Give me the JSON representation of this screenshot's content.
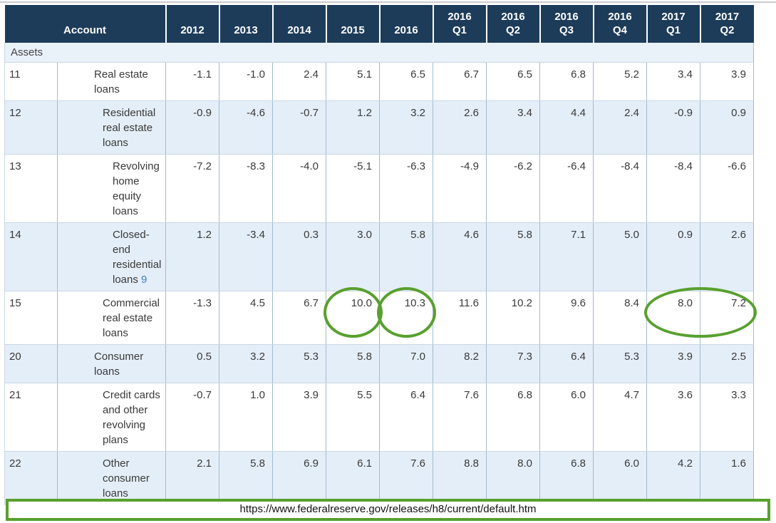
{
  "table": {
    "account_header": "Account",
    "columns": [
      "2012",
      "2013",
      "2014",
      "2015",
      "2016",
      "2016 Q1",
      "2016 Q2",
      "2016 Q3",
      "2016 Q4",
      "2017 Q1",
      "2017 Q2"
    ],
    "section_label": "Assets",
    "rows": [
      {
        "id": "11",
        "account": "Real estate loans",
        "indent": 1,
        "shaded": false,
        "values": [
          "-1.1",
          "-1.0",
          "2.4",
          "5.1",
          "6.5",
          "6.7",
          "6.5",
          "6.8",
          "5.2",
          "3.4",
          "3.9"
        ]
      },
      {
        "id": "12",
        "account": "Residential real estate loans",
        "indent": 2,
        "shaded": true,
        "values": [
          "-0.9",
          "-4.6",
          "-0.7",
          "1.2",
          "3.2",
          "2.6",
          "3.4",
          "4.4",
          "2.4",
          "-0.9",
          "0.9"
        ]
      },
      {
        "id": "13",
        "account": "Revolving home equity loans",
        "indent": 3,
        "shaded": false,
        "values": [
          "-7.2",
          "-8.3",
          "-4.0",
          "-5.1",
          "-6.3",
          "-4.9",
          "-6.2",
          "-6.4",
          "-8.4",
          "-8.4",
          "-6.6"
        ]
      },
      {
        "id": "14",
        "account": "Closed-end residential loans",
        "footnote": "9",
        "indent": 3,
        "shaded": true,
        "values": [
          "1.2",
          "-3.4",
          "0.3",
          "3.0",
          "5.8",
          "4.6",
          "5.8",
          "7.1",
          "5.0",
          "0.9",
          "2.6"
        ]
      },
      {
        "id": "15",
        "account": "Commercial real estate loans",
        "indent": 2,
        "shaded": false,
        "values": [
          "-1.3",
          "4.5",
          "6.7",
          "10.0",
          "10.3",
          "11.6",
          "10.2",
          "9.6",
          "8.4",
          "8.0",
          "7.2"
        ]
      },
      {
        "id": "20",
        "account": "Consumer loans",
        "indent": 1,
        "shaded": true,
        "values": [
          "0.5",
          "3.2",
          "5.3",
          "5.8",
          "7.0",
          "8.2",
          "7.3",
          "6.4",
          "5.3",
          "3.9",
          "2.5"
        ]
      },
      {
        "id": "21",
        "account": "Credit cards and other revolving plans",
        "indent": 2,
        "shaded": false,
        "values": [
          "-0.7",
          "1.0",
          "3.9",
          "5.5",
          "6.4",
          "7.6",
          "6.8",
          "6.0",
          "4.7",
          "3.6",
          "3.3"
        ]
      },
      {
        "id": "22",
        "account": "Other consumer loans",
        "indent": 2,
        "shaded": true,
        "values": [
          "2.1",
          "5.8",
          "6.9",
          "6.1",
          "7.6",
          "8.8",
          "8.0",
          "6.8",
          "6.0",
          "4.2",
          "1.6"
        ]
      }
    ],
    "annotations": [
      {
        "row": "15",
        "columns": [
          "2015"
        ]
      },
      {
        "row": "15",
        "columns": [
          "2016"
        ]
      },
      {
        "row": "15",
        "columns": [
          "2017 Q1",
          "2017 Q2"
        ]
      }
    ]
  },
  "footer": {
    "url": "https://www.federalreserve.gov/releases/h8/current/default.htm"
  },
  "colors": {
    "header_bg": "#1d3c5a",
    "row_shaded": "#e4eef8",
    "section_bg": "#e9f1f9",
    "border_vertical": "#a3bbce",
    "border_horizontal": "#c9d7e3",
    "annotation_green": "#58a02f",
    "footnote_link": "#3c82c4"
  }
}
